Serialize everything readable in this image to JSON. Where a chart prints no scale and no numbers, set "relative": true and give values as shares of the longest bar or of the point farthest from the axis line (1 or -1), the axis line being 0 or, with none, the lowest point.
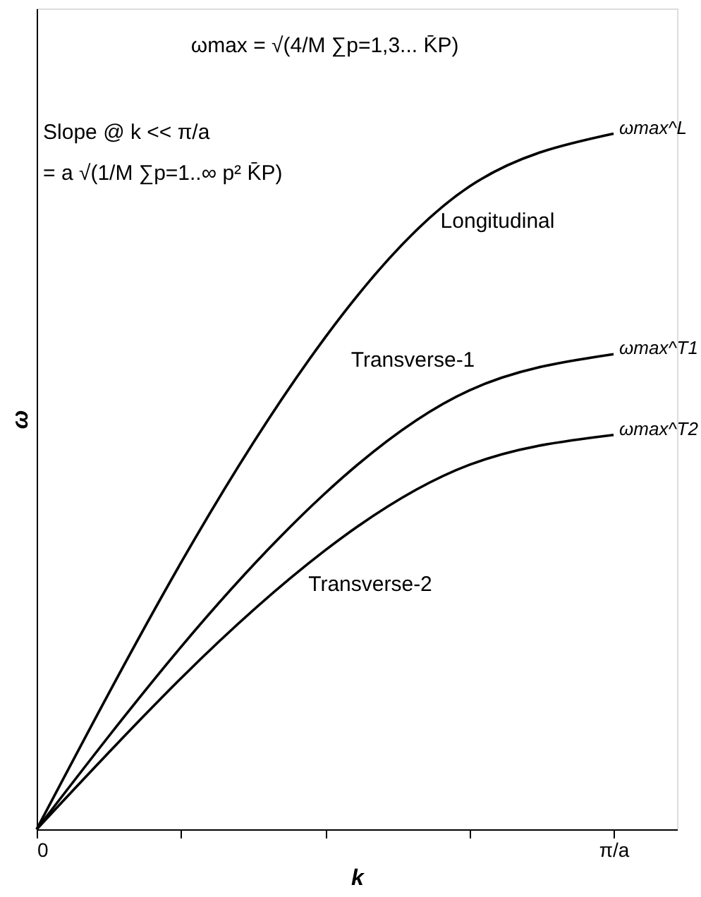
{
  "chart_data": {
    "type": "line",
    "relative": true,
    "xlabel": "k",
    "ylabel": "ω",
    "categories": [
      "0",
      null,
      null,
      null,
      "π/a"
    ],
    "series": [
      {
        "name": "Longitudinal",
        "color": "#000000",
        "values": [
          0,
          0.383,
          0.707,
          0.924,
          1
        ]
      },
      {
        "name": "Transverse-1",
        "color": "#000000",
        "values": [
          0,
          0.262,
          0.483,
          0.631,
          0.683
        ]
      },
      {
        "name": "Transverse-2",
        "color": "#000000",
        "values": [
          0,
          0.217,
          0.401,
          0.524,
          0.567
        ]
      }
    ],
    "annotations": [
      "ωmax = √(4/M ∑p=1,3... K̄P)",
      "Slope @ k << π/a",
      "= a √(1/M ∑p=1..∞ p² K̄P)",
      "ωmax^L",
      "ωmax^T1",
      "ωmax^T2"
    ],
    "grid": false,
    "legend": false,
    "marker": "none",
    "line_style": "solid"
  }
}
